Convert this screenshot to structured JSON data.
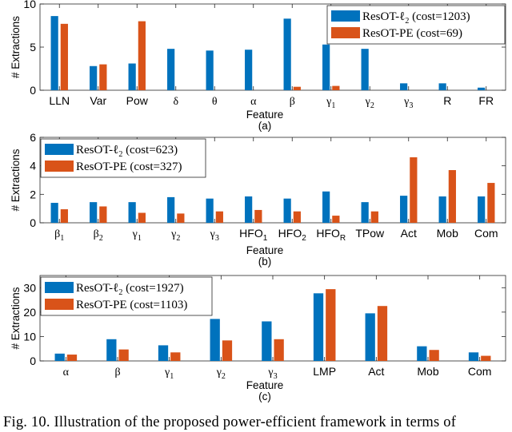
{
  "caption": "Fig. 10.  Illustration of the proposed power-efficient framework in terms of",
  "colors": {
    "series1": "#0072BD",
    "series2": "#D95319"
  },
  "chart_data": [
    {
      "type": "bar",
      "ylabel": "# Extractions",
      "xlabel": "Feature",
      "sublabel": "(a)",
      "ylim": [
        0,
        10
      ],
      "yticks": [
        0,
        5,
        10
      ],
      "categories": [
        "LLN",
        "Var",
        "Pow",
        "δ",
        "θ",
        "α",
        "β",
        "γ1",
        "γ2",
        "γ3",
        "R",
        "FR"
      ],
      "category_ticks": [
        {
          "main": "LLN",
          "sub": ""
        },
        {
          "main": "Var",
          "sub": ""
        },
        {
          "main": "Pow",
          "sub": ""
        },
        {
          "main": "δ",
          "sub": ""
        },
        {
          "main": "θ",
          "sub": ""
        },
        {
          "main": "α",
          "sub": ""
        },
        {
          "main": "β",
          "sub": ""
        },
        {
          "main": "γ",
          "sub": "1"
        },
        {
          "main": "γ",
          "sub": "2"
        },
        {
          "main": "γ",
          "sub": "3"
        },
        {
          "main": "R",
          "sub": ""
        },
        {
          "main": "FR",
          "sub": ""
        }
      ],
      "legend_position": "top-right",
      "series": [
        {
          "name": "ResOT-ℓ2 (cost=1203)",
          "legend_main": "ResOT-ℓ",
          "legend_sub": "2",
          "legend_suffix": " (cost=1203)",
          "values": [
            8.6,
            2.8,
            3.1,
            4.8,
            4.6,
            4.7,
            8.3,
            5.3,
            4.8,
            0.8,
            0.8,
            0.3
          ]
        },
        {
          "name": "ResOT-PE (cost=69)",
          "legend_main": "ResOT-PE",
          "legend_sub": "",
          "legend_suffix": " (cost=69)",
          "values": [
            7.7,
            3.0,
            8.0,
            0,
            0,
            0,
            0.4,
            0.5,
            0,
            0,
            0,
            0
          ]
        }
      ]
    },
    {
      "type": "bar",
      "ylabel": "# Extractions",
      "xlabel": "Feature",
      "sublabel": "(b)",
      "ylim": [
        0,
        6
      ],
      "yticks": [
        0,
        2,
        4,
        6
      ],
      "categories": [
        "β1",
        "β2",
        "γ1",
        "γ2",
        "γ3",
        "HFO1",
        "HFO2",
        "HFOR",
        "TPow",
        "Act",
        "Mob",
        "Com"
      ],
      "category_ticks": [
        {
          "main": "β",
          "sub": "1"
        },
        {
          "main": "β",
          "sub": "2"
        },
        {
          "main": "γ",
          "sub": "1"
        },
        {
          "main": "γ",
          "sub": "2"
        },
        {
          "main": "γ",
          "sub": "3"
        },
        {
          "main": "HFO",
          "sub": "1"
        },
        {
          "main": "HFO",
          "sub": "2"
        },
        {
          "main": "HFO",
          "sub": "R"
        },
        {
          "main": "TPow",
          "sub": ""
        },
        {
          "main": "Act",
          "sub": ""
        },
        {
          "main": "Mob",
          "sub": ""
        },
        {
          "main": "Com",
          "sub": ""
        }
      ],
      "legend_position": "top-left",
      "series": [
        {
          "name": "ResOT-ℓ2 (cost=623)",
          "legend_main": "ResOT-ℓ",
          "legend_sub": "2",
          "legend_suffix": " (cost=623)",
          "values": [
            1.4,
            1.45,
            1.45,
            1.8,
            1.7,
            1.85,
            1.7,
            2.2,
            1.45,
            1.9,
            1.85,
            1.85
          ]
        },
        {
          "name": "ResOT-PE (cost=327)",
          "legend_main": "ResOT-PE",
          "legend_sub": "",
          "legend_suffix": " (cost=327)",
          "values": [
            0.95,
            1.15,
            0.7,
            0.65,
            0.8,
            0.9,
            0.8,
            0.5,
            0.8,
            4.6,
            3.7,
            2.8
          ]
        }
      ]
    },
    {
      "type": "bar",
      "ylabel": "# Extractions",
      "xlabel": "Feature",
      "sublabel": "(c)",
      "ylim": [
        0,
        35
      ],
      "yticks": [
        0,
        10,
        20,
        30
      ],
      "categories": [
        "α",
        "β",
        "γ1",
        "γ2",
        "γ3",
        "LMP",
        "Act",
        "Mob",
        "Com"
      ],
      "category_ticks": [
        {
          "main": "α",
          "sub": ""
        },
        {
          "main": "β",
          "sub": ""
        },
        {
          "main": "γ",
          "sub": "1"
        },
        {
          "main": "γ",
          "sub": "2"
        },
        {
          "main": "γ",
          "sub": "3"
        },
        {
          "main": "LMP",
          "sub": ""
        },
        {
          "main": "Act",
          "sub": ""
        },
        {
          "main": "Mob",
          "sub": ""
        },
        {
          "main": "Com",
          "sub": ""
        }
      ],
      "legend_position": "top-left",
      "series": [
        {
          "name": "ResOT-ℓ2 (cost=1927)",
          "legend_main": "ResOT-ℓ",
          "legend_sub": "2",
          "legend_suffix": " (cost=1927)",
          "values": [
            3.0,
            8.9,
            6.4,
            17.2,
            16.2,
            27.7,
            19.5,
            6.0,
            3.5
          ]
        },
        {
          "name": "ResOT-PE (cost=1103)",
          "legend_main": "ResOT-PE",
          "legend_sub": "",
          "legend_suffix": " (cost=1103)",
          "values": [
            2.6,
            4.7,
            3.5,
            8.4,
            8.9,
            29.4,
            22.5,
            4.5,
            2.1
          ]
        }
      ]
    }
  ]
}
